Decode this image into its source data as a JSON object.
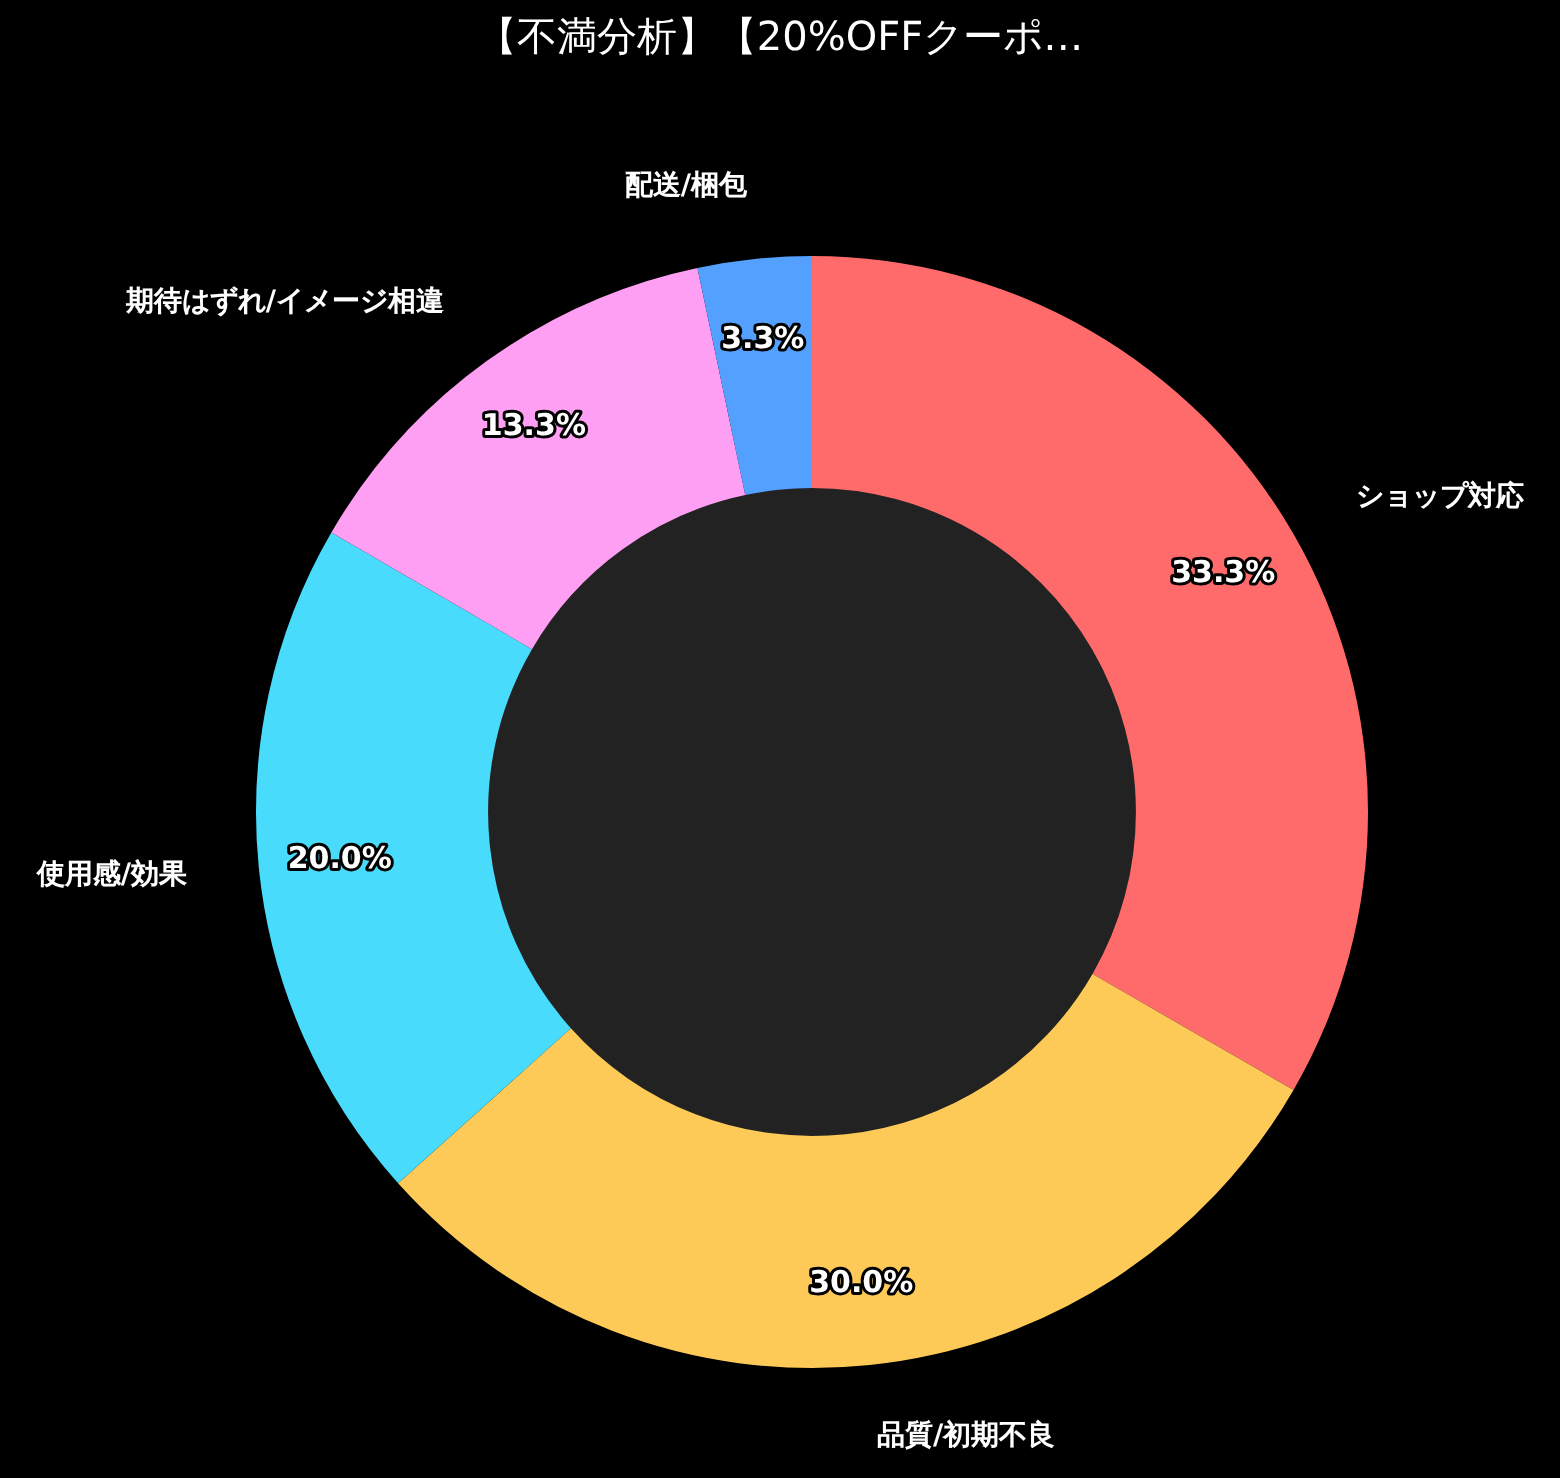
{
  "chart_data": {
    "type": "donut",
    "title": "【不満分析】【20%OFFクーポ…",
    "categories": [
      "ショップ対応",
      "品質/初期不良",
      "使用感/効果",
      "期待はずれ/イメージ相違",
      "配送/梱包"
    ],
    "values": [
      33.3,
      30.0,
      20.0,
      13.3,
      3.3
    ],
    "colors": [
      "#ff6b6b",
      "#feca57",
      "#48dbfb",
      "#ff9ff3",
      "#54a0ff"
    ],
    "value_labels": [
      "33.3%",
      "30.0%",
      "20.0%",
      "13.3%",
      "3.3%"
    ],
    "legend": false
  }
}
